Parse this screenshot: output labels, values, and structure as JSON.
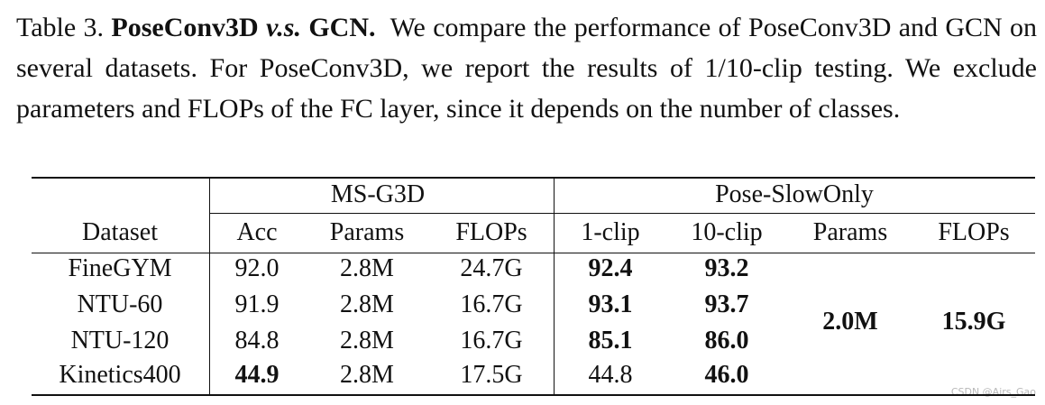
{
  "caption": {
    "label": "Table 3.",
    "title": [
      "PoseConv3D",
      "v.s.",
      "GCN."
    ],
    "text": "We compare the performance of PoseConv3D and GCN on several datasets. For PoseConv3D, we report the results of 1/10-clip testing. We exclude parameters and FLOPs of the FC layer, since it depends on the number of classes."
  },
  "table": {
    "groups": [
      "MS-G3D",
      "Pose-SlowOnly"
    ],
    "columns": [
      "Dataset",
      "Acc",
      "Params",
      "FLOPs",
      "1-clip",
      "10-clip",
      "Params",
      "FLOPs"
    ],
    "rows": [
      [
        "FineGYM",
        "92.0",
        "2.8M",
        "24.7G",
        "92.4",
        "93.2"
      ],
      [
        "NTU-60",
        "91.9",
        "2.8M",
        "16.7G",
        "93.1",
        "93.7"
      ],
      [
        "NTU-120",
        "84.8",
        "2.8M",
        "16.7G",
        "85.1",
        "86.0"
      ],
      [
        "Kinetics400",
        "44.9",
        "2.8M",
        "17.5G",
        "44.8",
        "46.0"
      ]
    ],
    "shared": [
      "2.0M",
      "15.9G"
    ]
  },
  "watermark": "CSDN @Airs_Gao"
}
